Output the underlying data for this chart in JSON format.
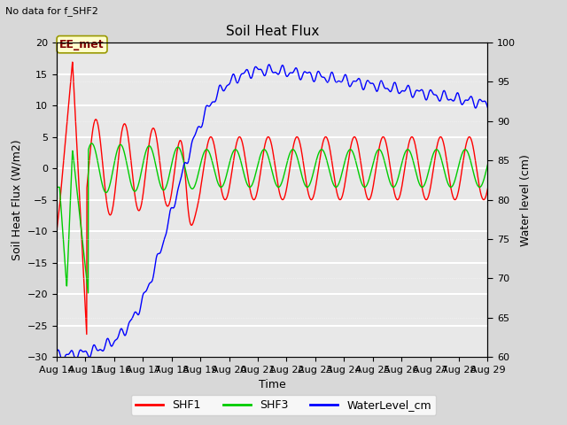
{
  "title": "Soil Heat Flux",
  "subtitle": "No data for f_SHF2",
  "xlabel": "Time",
  "ylabel_left": "Soil Heat Flux (W/m2)",
  "ylabel_right": "Water level (cm)",
  "ylim_left": [
    -30,
    20
  ],
  "ylim_right": [
    60,
    100
  ],
  "yticks_left": [
    -30,
    -25,
    -20,
    -15,
    -10,
    -5,
    0,
    5,
    10,
    15,
    20
  ],
  "yticks_right": [
    60,
    65,
    70,
    75,
    80,
    85,
    90,
    95,
    100
  ],
  "xtick_labels": [
    "Aug 14",
    "Aug 15",
    "Aug 16",
    "Aug 17",
    "Aug 18",
    "Aug 19",
    "Aug 20",
    "Aug 21",
    "Aug 22",
    "Aug 23",
    "Aug 24",
    "Aug 25",
    "Aug 26",
    "Aug 27",
    "Aug 28",
    "Aug 29"
  ],
  "bg_color": "#d8d8d8",
  "plot_bg_color": "#e8e8e8",
  "grid_color": "#ffffff",
  "annotation_box_color": "#ffffcc",
  "annotation_box_edge": "#999900",
  "annotation_text": "EE_met",
  "annotation_text_color": "#800000",
  "colors_shf1": "#ff0000",
  "colors_shf3": "#00cc00",
  "colors_water": "#0000ff",
  "legend_entries": [
    "SHF1",
    "SHF3",
    "WaterLevel_cm"
  ]
}
